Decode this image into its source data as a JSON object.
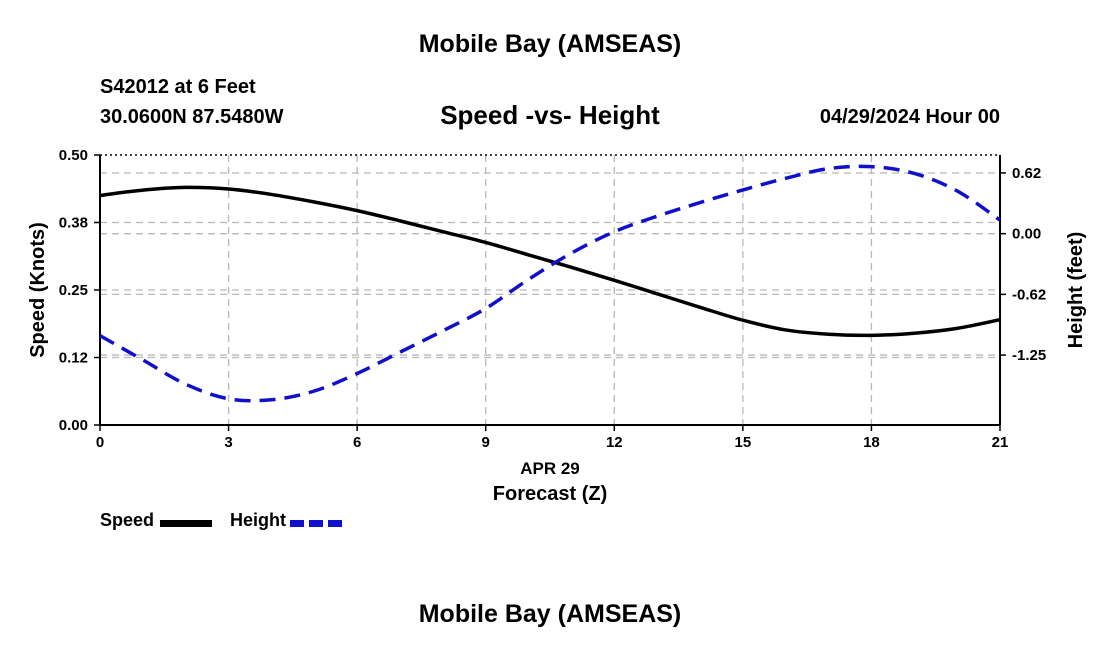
{
  "header": {
    "title": "Mobile Bay (AMSEAS)",
    "station": "S42012 at 6 Feet",
    "coords": "30.0600N  87.5480W",
    "date": "04/29/2024 Hour 00"
  },
  "footer": {
    "title": "Mobile Bay (AMSEAS)"
  },
  "legend": [
    {
      "label": "Speed",
      "color": "#000000",
      "style": "solid"
    },
    {
      "label": "Height",
      "color": "#1010cc",
      "style": "dashed"
    }
  ],
  "chart_data": {
    "type": "line",
    "title": "Speed -vs- Height",
    "xlabel": "Forecast (Z)",
    "xdate_label": "APR 29",
    "ylabel": "Speed (Knots)",
    "y2label": "Height (feet)",
    "xlim": [
      0,
      21
    ],
    "ylim": [
      0,
      0.5
    ],
    "y2lim": [
      -1.97,
      0.81
    ],
    "x_ticks": [
      "0",
      "3",
      "6",
      "9",
      "12",
      "15",
      "18",
      "21"
    ],
    "y_ticks": [
      "0.00",
      "0.12",
      "0.25",
      "0.38",
      "0.50"
    ],
    "y_tick_values": [
      0,
      0.125,
      0.25,
      0.375,
      0.5
    ],
    "y2_ticks": [
      "0.62",
      "0.00",
      "-0.62",
      "-1.25"
    ],
    "y2_tick_values": [
      0.625,
      0,
      -0.625,
      -1.25
    ],
    "grid": true,
    "x": [
      0,
      1,
      2,
      3,
      4,
      5,
      6,
      7,
      8,
      9,
      10,
      11,
      12,
      13,
      14,
      15,
      16,
      17,
      18,
      19,
      20,
      21
    ],
    "series": [
      {
        "name": "Speed",
        "axis": "left",
        "color": "#000000",
        "style": "solid",
        "values": [
          0.425,
          0.435,
          0.44,
          0.437,
          0.427,
          0.413,
          0.397,
          0.378,
          0.358,
          0.338,
          0.315,
          0.292,
          0.268,
          0.243,
          0.218,
          0.194,
          0.176,
          0.168,
          0.166,
          0.17,
          0.179,
          0.195
        ]
      },
      {
        "name": "Height",
        "axis": "right",
        "color": "#1010cc",
        "style": "dashed",
        "values": [
          -1.05,
          -1.3,
          -1.55,
          -1.7,
          -1.71,
          -1.62,
          -1.44,
          -1.22,
          -1.0,
          -0.77,
          -0.47,
          -0.2,
          0.02,
          0.18,
          0.32,
          0.45,
          0.57,
          0.67,
          0.69,
          0.62,
          0.44,
          0.14
        ]
      }
    ]
  }
}
